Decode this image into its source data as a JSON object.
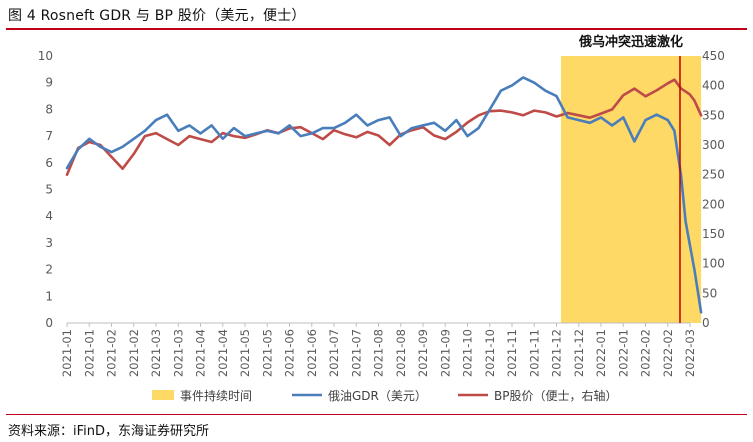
{
  "figure": {
    "title": "图 4   Rosneft GDR 与 BP 股价（美元，便士）",
    "source": "资料来源：iFinD，东海证券研究所"
  },
  "colors": {
    "gdr": "#4a7ebb",
    "bp": "#be4b48",
    "event": "#ffd966",
    "marker": "#c00000",
    "rule": "#c0001a",
    "axis_text": "#595959"
  },
  "chart_data": {
    "type": "line",
    "title": "",
    "xlabel": "",
    "ylabel": "",
    "y2label": "",
    "ylim": [
      0,
      10
    ],
    "y2lim": [
      0,
      450
    ],
    "yticks": [
      "0",
      "1",
      "2",
      "3",
      "4",
      "5",
      "6",
      "7",
      "8",
      "9",
      "10"
    ],
    "y2ticks": [
      "0",
      "50",
      "100",
      "150",
      "200",
      "250",
      "300",
      "350",
      "400",
      "450"
    ],
    "x_ticks": [
      "2021-01",
      "2021-01",
      "2021-02",
      "2021-02",
      "2021-03",
      "2021-03",
      "2021-04",
      "2021-04",
      "2021-05",
      "2021-05",
      "2021-06",
      "2021-06",
      "2021-07",
      "2021-07",
      "2021-08",
      "2021-08",
      "2021-09",
      "2021-09",
      "2021-10",
      "2021-10",
      "2021-11",
      "2021-11",
      "2021-12",
      "2021-12",
      "2022-01",
      "2022-01",
      "2022-02",
      "2022-02",
      "2022-03"
    ],
    "x_points": [
      0,
      0.5,
      1,
      1.5,
      2,
      2.5,
      3,
      3.5,
      4,
      4.5,
      5,
      5.5,
      6,
      6.5,
      7,
      7.5,
      8,
      8.5,
      9,
      9.5,
      10,
      10.5,
      11,
      11.5,
      12,
      12.5,
      13,
      13.5,
      14,
      14.5,
      15,
      15.5,
      16,
      16.5,
      17,
      17.5,
      18,
      18.5,
      19,
      19.5,
      20,
      20.5,
      21,
      21.5,
      22,
      22.5,
      23,
      23.5,
      24,
      24.5,
      25,
      25.5,
      26,
      26.5,
      27,
      27.3,
      27.6,
      27.8,
      28,
      28.2,
      28.5
    ],
    "event": {
      "label": "俄乌冲突迅速激化",
      "x_start": 22.2,
      "x_end": 28.5,
      "marker_x": 27.55
    },
    "series": [
      {
        "name": "俄油GDR（美元）",
        "axis": "left",
        "values": [
          5.8,
          6.5,
          6.9,
          6.6,
          6.4,
          6.6,
          6.9,
          7.2,
          7.6,
          7.8,
          7.2,
          7.4,
          7.1,
          7.4,
          6.9,
          7.3,
          7.0,
          7.1,
          7.2,
          7.1,
          7.4,
          7.0,
          7.1,
          7.3,
          7.3,
          7.5,
          7.8,
          7.4,
          7.6,
          7.7,
          7.0,
          7.3,
          7.4,
          7.5,
          7.2,
          7.6,
          7.0,
          7.3,
          8.0,
          8.7,
          8.9,
          9.2,
          9.0,
          8.7,
          8.5,
          7.7,
          7.6,
          7.5,
          7.7,
          7.4,
          7.7,
          6.8,
          7.6,
          7.8,
          7.6,
          7.2,
          5.5,
          3.8,
          2.9,
          2.0,
          0.4
        ]
      },
      {
        "name": "BP股价（便士，右轴）",
        "axis": "right",
        "values": [
          250,
          295,
          305,
          300,
          280,
          260,
          285,
          315,
          320,
          310,
          300,
          315,
          310,
          305,
          320,
          315,
          312,
          318,
          325,
          320,
          328,
          330,
          320,
          310,
          325,
          318,
          313,
          322,
          316,
          300,
          318,
          325,
          330,
          316,
          310,
          322,
          338,
          350,
          357,
          358,
          355,
          350,
          358,
          355,
          348,
          354,
          350,
          346,
          353,
          360,
          384,
          395,
          382,
          392,
          404,
          410,
          395,
          390,
          385,
          375,
          350
        ]
      }
    ],
    "legend": {
      "position": "bottom",
      "items": [
        "事件持续时间",
        "俄油GDR（美元）",
        "BP股价（便士，右轴）"
      ]
    }
  }
}
